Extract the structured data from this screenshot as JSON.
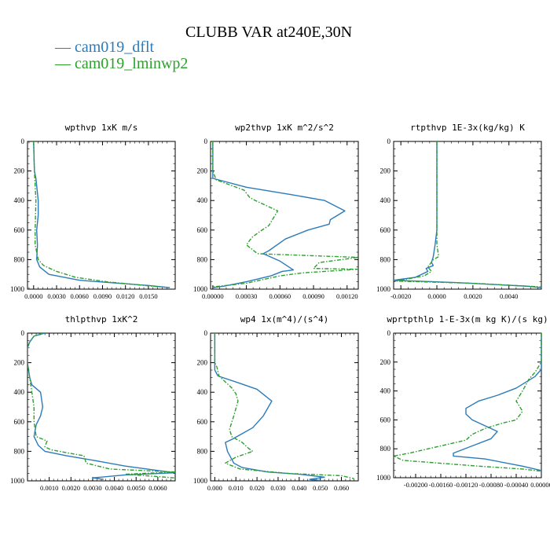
{
  "header": {
    "title": "CLUBB VAR at240E,30N",
    "legend": [
      {
        "label": "cam019_dflt",
        "color": "#2b7bba"
      },
      {
        "label": "cam019_lminwp2",
        "color": "#2ca02c"
      }
    ]
  },
  "colors": {
    "dflt": "#2b7bba",
    "lminwp2": "#2ca02c",
    "axis": "#000000"
  },
  "chart_data": [
    {
      "type": "line",
      "title": "wpthvp  1xK m/s",
      "xlim": [
        -0.0008,
        0.0185
      ],
      "ylim": [
        1000,
        0
      ],
      "xticks": [
        0.0,
        0.003,
        0.006,
        0.009,
        0.012,
        0.015
      ],
      "xtick_labels": [
        "0.0000",
        "0.0030",
        "0.0060",
        "0.0090",
        "0.0120",
        "0.0150"
      ],
      "yticks": [
        0,
        200,
        400,
        600,
        800,
        1000
      ],
      "series": [
        {
          "name": "cam019_dflt",
          "dashed": false,
          "points": [
            [
              0.0,
              0
            ],
            [
              0.0001,
              200
            ],
            [
              0.0003,
              250
            ],
            [
              0.0006,
              400
            ],
            [
              0.0006,
              500
            ],
            [
              0.0004,
              600
            ],
            [
              0.0005,
              700
            ],
            [
              0.0004,
              800
            ],
            [
              0.0008,
              850
            ],
            [
              0.002,
              900
            ],
            [
              0.006,
              940
            ],
            [
              0.011,
              960
            ],
            [
              0.015,
              975
            ],
            [
              0.0178,
              990
            ]
          ]
        },
        {
          "name": "cam019_lminwp2",
          "dashed": true,
          "points": [
            [
              0.0,
              0
            ],
            [
              0.0001,
              200
            ],
            [
              0.0002,
              300
            ],
            [
              0.0003,
              400
            ],
            [
              0.0002,
              600
            ],
            [
              0.0002,
              700
            ],
            [
              0.0006,
              800
            ],
            [
              0.0013,
              840
            ],
            [
              0.003,
              880
            ],
            [
              0.0055,
              920
            ],
            [
              0.0095,
              950
            ],
            [
              0.0135,
              970
            ],
            [
              0.0165,
              985
            ]
          ]
        }
      ]
    },
    {
      "type": "line",
      "title": "wp2thvp  1xK m^2/s^2",
      "xlim": [
        -2e-05,
        0.0013
      ],
      "ylim": [
        1000,
        0
      ],
      "xticks": [
        0.0,
        0.0003,
        0.0006,
        0.0009,
        0.0012
      ],
      "xtick_labels": [
        "0.00000",
        "0.00030",
        "0.00060",
        "0.00090",
        "0.00120"
      ],
      "yticks": [
        0,
        200,
        400,
        600,
        800,
        1000
      ],
      "series": [
        {
          "name": "cam019_dflt",
          "dashed": false,
          "points": [
            [
              0.0,
              0
            ],
            [
              0.0,
              200
            ],
            [
              0.0,
              250
            ],
            [
              0.0003,
              310
            ],
            [
              0.0007,
              360
            ],
            [
              0.001,
              400
            ],
            [
              0.00118,
              470
            ],
            [
              0.00105,
              530
            ],
            [
              0.00104,
              560
            ],
            [
              0.00085,
              600
            ],
            [
              0.00065,
              660
            ],
            [
              0.0005,
              740
            ],
            [
              0.00045,
              760
            ],
            [
              0.0006,
              810
            ],
            [
              0.00072,
              870
            ],
            [
              0.00062,
              880
            ],
            [
              0.00052,
              910
            ],
            [
              0.0003,
              950
            ],
            [
              0.0001,
              980
            ],
            [
              0.0,
              990
            ]
          ]
        },
        {
          "name": "cam019_lminwp2",
          "dashed": true,
          "points": [
            [
              0.0,
              0
            ],
            [
              0.0,
              200
            ],
            [
              3e-05,
              260
            ],
            [
              0.00028,
              330
            ],
            [
              0.00033,
              380
            ],
            [
              0.00038,
              400
            ],
            [
              0.00058,
              470
            ],
            [
              0.0005,
              570
            ],
            [
              0.00042,
              610
            ],
            [
              0.00035,
              650
            ],
            [
              0.0003,
              700
            ],
            [
              0.0004,
              760
            ],
            [
              0.0013,
              785
            ],
            [
              0.00095,
              820
            ],
            [
              0.0009,
              860
            ],
            [
              0.0013,
              865
            ],
            [
              0.0008,
              890
            ],
            [
              0.0006,
              910
            ],
            [
              0.0003,
              960
            ],
            [
              0.0,
              985
            ]
          ]
        }
      ]
    },
    {
      "type": "line",
      "title": "rtpthvp  1E-3x(kg/kg) K",
      "xlim": [
        -0.0024,
        0.0058
      ],
      "ylim": [
        1000,
        0
      ],
      "xticks": [
        -0.002,
        0.0,
        0.002,
        0.004
      ],
      "xtick_labels": [
        "-0.0020",
        "0.0000",
        "0.0020",
        "0.0040"
      ],
      "yticks": [
        0,
        200,
        400,
        600,
        800,
        1000
      ],
      "series": [
        {
          "name": "cam019_dflt",
          "dashed": false,
          "points": [
            [
              0.0,
              0
            ],
            [
              0.0,
              400
            ],
            [
              0.0,
              600
            ],
            [
              -0.0001,
              700
            ],
            [
              -0.0002,
              780
            ],
            [
              -0.0003,
              820
            ],
            [
              -0.0002,
              840
            ],
            [
              -0.0006,
              860
            ],
            [
              -0.0005,
              880
            ],
            [
              -0.0012,
              920
            ],
            [
              -0.0024,
              940
            ],
            [
              0.001,
              955
            ],
            [
              0.005,
              980
            ],
            [
              0.0058,
              990
            ]
          ]
        },
        {
          "name": "cam019_lminwp2",
          "dashed": true,
          "points": [
            [
              0.0,
              0
            ],
            [
              0.0,
              400
            ],
            [
              0.0,
              600
            ],
            [
              0.0,
              700
            ],
            [
              0.0001,
              780
            ],
            [
              -0.0002,
              800
            ],
            [
              -0.0005,
              850
            ],
            [
              -0.0003,
              880
            ],
            [
              -0.0007,
              910
            ],
            [
              -0.0018,
              935
            ],
            [
              -0.0024,
              945
            ],
            [
              0.002,
              960
            ],
            [
              0.0058,
              985
            ]
          ]
        }
      ]
    },
    {
      "type": "line",
      "title": "thlpthvp  1xK^2",
      "xlim": [
        0.0,
        0.0068
      ],
      "ylim": [
        1000,
        0
      ],
      "xticks": [
        0.001,
        0.002,
        0.003,
        0.004,
        0.005,
        0.006
      ],
      "xtick_labels": [
        "0.0010",
        "0.0020",
        "0.0030",
        "0.0040",
        "0.0050",
        "0.0060"
      ],
      "yticks": [
        0,
        200,
        400,
        600,
        800,
        1000
      ],
      "series": [
        {
          "name": "cam019_dflt",
          "dashed": false,
          "points": [
            [
              0.0008,
              0
            ],
            [
              0.0003,
              20
            ],
            [
              0.0001,
              60
            ],
            [
              0.0,
              100
            ],
            [
              0.0,
              200
            ],
            [
              0.0001,
              300
            ],
            [
              0.0002,
              350
            ],
            [
              0.0006,
              400
            ],
            [
              0.0007,
              500
            ],
            [
              0.0006,
              560
            ],
            [
              0.0004,
              620
            ],
            [
              0.0003,
              700
            ],
            [
              0.0005,
              760
            ],
            [
              0.0008,
              800
            ],
            [
              0.0018,
              830
            ],
            [
              0.003,
              860
            ],
            [
              0.0045,
              900
            ],
            [
              0.006,
              930
            ],
            [
              0.0068,
              945
            ],
            [
              0.0045,
              960
            ],
            [
              0.003,
              980
            ],
            [
              0.0035,
              990
            ]
          ]
        },
        {
          "name": "cam019_lminwp2",
          "dashed": true,
          "points": [
            [
              0.0007,
              0
            ],
            [
              0.0003,
              20
            ],
            [
              0.0001,
              60
            ],
            [
              0.0,
              100
            ],
            [
              0.0,
              200
            ],
            [
              0.0001,
              300
            ],
            [
              0.0002,
              400
            ],
            [
              0.0003,
              500
            ],
            [
              0.0003,
              600
            ],
            [
              0.0004,
              700
            ],
            [
              0.0009,
              730
            ],
            [
              0.0008,
              770
            ],
            [
              0.0011,
              790
            ],
            [
              0.0022,
              820
            ],
            [
              0.0026,
              830
            ],
            [
              0.0027,
              880
            ],
            [
              0.0038,
              920
            ],
            [
              0.0068,
              940
            ],
            [
              0.0045,
              955
            ],
            [
              0.0068,
              980
            ]
          ]
        }
      ]
    },
    {
      "type": "line",
      "title": "wp4  1x(m^4)/(s^4)",
      "xlim": [
        -0.002,
        0.068
      ],
      "ylim": [
        1000,
        0
      ],
      "xticks": [
        0.0,
        0.01,
        0.02,
        0.03,
        0.04,
        0.05,
        0.06
      ],
      "xtick_labels": [
        "0.000",
        "0.010",
        "0.020",
        "0.030",
        "0.040",
        "0.050",
        "0.060"
      ],
      "yticks": [
        0,
        200,
        400,
        600,
        800,
        1000
      ],
      "series": [
        {
          "name": "cam019_dflt",
          "dashed": false,
          "points": [
            [
              0.0,
              0
            ],
            [
              0.0,
              200
            ],
            [
              0.0,
              250
            ],
            [
              0.0015,
              290
            ],
            [
              0.012,
              340
            ],
            [
              0.02,
              380
            ],
            [
              0.027,
              460
            ],
            [
              0.023,
              560
            ],
            [
              0.018,
              640
            ],
            [
              0.013,
              680
            ],
            [
              0.008,
              720
            ],
            [
              0.005,
              740
            ],
            [
              0.006,
              800
            ],
            [
              0.009,
              880
            ],
            [
              0.013,
              910
            ],
            [
              0.025,
              940
            ],
            [
              0.04,
              955
            ],
            [
              0.052,
              975
            ],
            [
              0.045,
              990
            ],
            [
              0.05,
              997
            ]
          ]
        },
        {
          "name": "cam019_lminwp2",
          "dashed": true,
          "points": [
            [
              0.0,
              0
            ],
            [
              0.0,
              200
            ],
            [
              0.001,
              230
            ],
            [
              0.002,
              290
            ],
            [
              0.008,
              370
            ],
            [
              0.01,
              410
            ],
            [
              0.011,
              460
            ],
            [
              0.009,
              560
            ],
            [
              0.007,
              650
            ],
            [
              0.008,
              700
            ],
            [
              0.013,
              740
            ],
            [
              0.016,
              780
            ],
            [
              0.018,
              800
            ],
            [
              0.01,
              840
            ],
            [
              0.005,
              880
            ],
            [
              0.012,
              920
            ],
            [
              0.035,
              950
            ],
            [
              0.06,
              965
            ],
            [
              0.066,
              985
            ]
          ]
        }
      ]
    },
    {
      "type": "line",
      "title": "wprtpthlp  1-E-3x(m kg K)/(s kg)",
      "xlim": [
        -0.00235,
        0.0
      ],
      "ylim": [
        1000,
        0
      ],
      "xticks": [
        -0.002,
        -0.0016,
        -0.0012,
        -0.0008,
        -0.0004,
        0.0
      ],
      "xtick_labels": [
        "-0.00200",
        "-0.00160",
        "-0.00120",
        "-0.00080",
        "-0.00040",
        "0.00000"
      ],
      "yticks": [
        0,
        200,
        400,
        600,
        800,
        1000
      ],
      "series": [
        {
          "name": "cam019_dflt",
          "dashed": false,
          "points": [
            [
              0.0,
              0
            ],
            [
              0.0,
              200
            ],
            [
              0.0,
              250
            ],
            [
              -0.0001,
              300
            ],
            [
              -0.0004,
              380
            ],
            [
              -0.0007,
              430
            ],
            [
              -0.001,
              470
            ],
            [
              -0.0012,
              520
            ],
            [
              -0.0012,
              560
            ],
            [
              -0.0011,
              600
            ],
            [
              -0.0009,
              640
            ],
            [
              -0.0007,
              680
            ],
            [
              -0.0008,
              730
            ],
            [
              -0.0011,
              780
            ],
            [
              -0.0014,
              830
            ],
            [
              -0.0014,
              850
            ],
            [
              -0.0009,
              870
            ],
            [
              -0.0003,
              920
            ],
            [
              0.0,
              950
            ]
          ]
        },
        {
          "name": "cam019_lminwp2",
          "dashed": true,
          "points": [
            [
              0.0,
              0
            ],
            [
              0.0,
              200
            ],
            [
              -0.0001,
              270
            ],
            [
              -0.0002,
              320
            ],
            [
              -0.0003,
              400
            ],
            [
              -0.0004,
              470
            ],
            [
              -0.0003,
              540
            ],
            [
              -0.0004,
              600
            ],
            [
              -0.0006,
              620
            ],
            [
              -0.0009,
              660
            ],
            [
              -0.0011,
              700
            ],
            [
              -0.0012,
              740
            ],
            [
              -0.0017,
              790
            ],
            [
              -0.0021,
              830
            ],
            [
              -0.00235,
              850
            ],
            [
              -0.0022,
              880
            ],
            [
              -0.001,
              920
            ],
            [
              -0.0003,
              940
            ],
            [
              0.0,
              955
            ]
          ]
        }
      ]
    }
  ]
}
